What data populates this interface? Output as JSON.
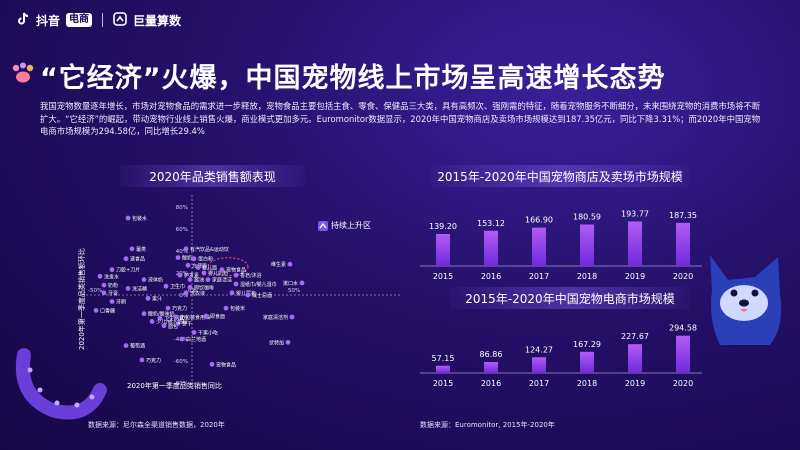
{
  "header": {
    "brand1": "抖音",
    "brand1_badge": "电商",
    "brand2": "巨量算数"
  },
  "title": "“它经济”火爆，中国宠物线上市场呈高速增长态势",
  "intro": "我国宠物数量逐年增长，市场对宠物食品的需求进一步释放，宠物食品主要包括主食、零食、保健品三大类，具有高频次、强刚需的特征，随着宠物服务不断细分，未来围绕宠物的消费市场将不断扩大。“它经济”的崛起，带动宠物行业线上销售火爆，商业模式更加多元。Euromonitor数据显示，2020年中国宠物商店及卖场市场规模达到187.35亿元，同比下降3.31%；而2020年中国宠物电商市场规模为294.58亿，同比增长29.4%",
  "scatter": {
    "title": "2020年品类销售额表现",
    "xlabel": "2020年第一季度品类销售同比",
    "ylabel": "2020年第一季度品类销售额环比",
    "x_ticks": [
      "-100%",
      "-50%",
      "0%",
      "50%"
    ],
    "y_ticks": [
      "80%",
      "60%",
      "40%",
      "20%",
      "0%",
      "-20%",
      "-40%",
      "-60%",
      "-80%"
    ],
    "annotation": "持续上升区",
    "highlight": "宠物食品",
    "source": "数据来源：尼尔森全渠道销售数据，2020年"
  },
  "chart_data": [
    {
      "type": "scatter",
      "title": "2020年品类销售额表现",
      "xlabel": "2020年第一季度品类销售同比",
      "ylabel": "2020年第一季度品类销售额环比",
      "xlim": [
        -100,
        55
      ],
      "ylim": [
        -85,
        85
      ],
      "points": [
        {
          "label": "包装水",
          "x": -32,
          "y": 70
        },
        {
          "label": "薯类",
          "x": -30,
          "y": 42
        },
        {
          "label": "有汽饮品&运动饮",
          "x": -3,
          "y": 42
        },
        {
          "label": "速食品",
          "x": -33,
          "y": 33
        },
        {
          "label": "酸奶",
          "x": -7,
          "y": 34
        },
        {
          "label": "蛋白粉",
          "x": 1,
          "y": 33
        },
        {
          "label": "方便面",
          "x": -2,
          "y": 27
        },
        {
          "label": "婴儿面",
          "x": 3,
          "y": 25
        },
        {
          "label": "婴儿奶粉",
          "x": 6,
          "y": 20
        },
        {
          "label": "宠物食品",
          "x": 15,
          "y": 23
        },
        {
          "label": "刀胶+刀片",
          "x": -40,
          "y": 23
        },
        {
          "label": "护发素",
          "x": -6,
          "y": 18
        },
        {
          "label": "酱油",
          "x": -1,
          "y": 14
        },
        {
          "label": "家庭清洁",
          "x": 8,
          "y": 14
        },
        {
          "label": "液体奶",
          "x": -24,
          "y": 14
        },
        {
          "label": "洗发水",
          "x": -46,
          "y": 17
        },
        {
          "label": "香皂/沐浴",
          "x": 22,
          "y": 18
        },
        {
          "label": "维生素",
          "x": 49,
          "y": 28
        },
        {
          "label": "奶粉",
          "x": -44,
          "y": 9
        },
        {
          "label": "即饮咖啡",
          "x": -1,
          "y": 7
        },
        {
          "label": "湿纸巾/婴儿湿巾",
          "x": 22,
          "y": 10
        },
        {
          "label": "漱口水",
          "x": 55,
          "y": 11
        },
        {
          "label": "洗洁精",
          "x": -32,
          "y": 6
        },
        {
          "label": "卫生巾",
          "x": -13,
          "y": 8
        },
        {
          "label": "牙膏",
          "x": -44,
          "y": 2
        },
        {
          "label": "洗衣液",
          "x": -3,
          "y": 2
        },
        {
          "label": "婴儿尿布",
          "x": 20,
          "y": 2
        },
        {
          "label": "威士忌酒",
          "x": 28,
          "y": 0
        },
        {
          "label": "牙刷",
          "x": -40,
          "y": -6
        },
        {
          "label": "果汁",
          "x": -22,
          "y": -3
        },
        {
          "label": "巧克力",
          "x": -12,
          "y": -12
        },
        {
          "label": "包装米",
          "x": 17,
          "y": -12
        },
        {
          "label": "口香糖",
          "x": -48,
          "y": -14
        },
        {
          "label": "酸奶/酸味奶",
          "x": -24,
          "y": -17
        },
        {
          "label": "卫生用具",
          "x": -16,
          "y": -21
        },
        {
          "label": "小包装食用油",
          "x": -8,
          "y": -20
        },
        {
          "label": "面包",
          "x": -14,
          "y": -28
        },
        {
          "label": "饼干",
          "x": -7,
          "y": -26
        },
        {
          "label": "即食面",
          "x": 7,
          "y": -19
        },
        {
          "label": "家庭清洁剂",
          "x": 50,
          "y": -20
        },
        {
          "label": "少儿/成人奶粉",
          "x": -20,
          "y": -24
        },
        {
          "label": "干果小吃",
          "x": 1,
          "y": -34
        },
        {
          "label": "白兰地酒",
          "x": -5,
          "y": -40
        },
        {
          "label": "伏特加",
          "x": 48,
          "y": -43
        },
        {
          "label": "葡萄酒",
          "x": -33,
          "y": -46
        },
        {
          "label": "巧克力",
          "x": -25,
          "y": -59
        },
        {
          "label": "宠物食品",
          "x": 10,
          "y": -63
        }
      ]
    },
    {
      "type": "bar",
      "title": "2015年-2020年中国宠物商店及卖场市场规模",
      "categories": [
        "2015",
        "2016",
        "2017",
        "2018",
        "2019",
        "2020"
      ],
      "values": [
        139.2,
        153.12,
        166.9,
        180.59,
        193.77,
        187.35
      ],
      "value_labels": [
        "139.20",
        "153.12",
        "166.90",
        "180.59",
        "193.77",
        "187.35"
      ]
    },
    {
      "type": "bar",
      "title": "2015年-2020年中国宠物电商市场规模",
      "categories": [
        "2015",
        "2016",
        "2017",
        "2018",
        "2019",
        "2020"
      ],
      "values": [
        57.15,
        86.86,
        124.27,
        167.29,
        227.67,
        294.58
      ],
      "value_labels": [
        "57.15",
        "86.86",
        "124.27",
        "167.29",
        "227.67",
        "294.58"
      ]
    }
  ],
  "bars_source": "数据来源：Euromonitor, 2015年-2020年",
  "colors": {
    "accent": "#8b4bf0",
    "bar_top": "#b25cf5",
    "bar_bottom": "#6d2bd8",
    "highlight_ring": "#ff5a78",
    "dot": "#a36cf0"
  }
}
